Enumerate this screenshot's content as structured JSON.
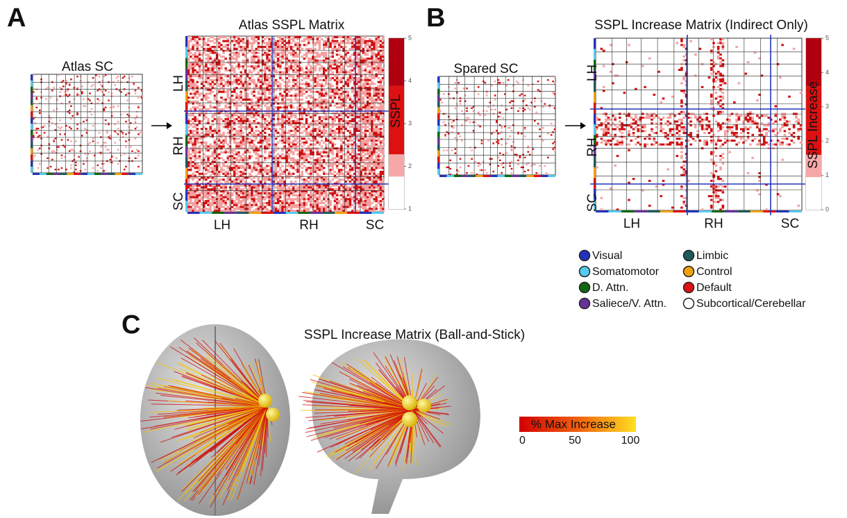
{
  "panels": {
    "A": {
      "label": "A",
      "small_title": "Atlas SC",
      "title": "Atlas SSPL Matrix",
      "row_labels": [
        "LH",
        "RH",
        "SC"
      ],
      "col_labels": [
        "LH",
        "RH",
        "SC"
      ],
      "colorbar": {
        "label": "SSPL",
        "ticks": [
          1,
          2,
          3,
          4,
          5
        ]
      }
    },
    "B": {
      "label": "B",
      "small_title": "Spared SC",
      "title": "SSPL Increase Matrix (Indirect Only)",
      "row_labels": [
        "LH",
        "RH",
        "SC"
      ],
      "col_labels": [
        "LH",
        "RH",
        "SC"
      ],
      "colorbar": {
        "label": "SSPL Increase",
        "ticks": [
          0,
          1,
          2,
          3,
          4,
          5
        ]
      }
    },
    "legend": [
      {
        "name": "Visual",
        "color": "#2233bb"
      },
      {
        "name": "Somatomotor",
        "color": "#55ccee"
      },
      {
        "name": "D. Attn.",
        "color": "#116611"
      },
      {
        "name": "Saliece/V. Attn.",
        "color": "#663399"
      },
      {
        "name": "Limbic",
        "color": "#1e5a5a"
      },
      {
        "name": "Control",
        "color": "#f0a010"
      },
      {
        "name": "Default",
        "color": "#dd1111"
      },
      {
        "name": "Subcortical/Cerebellar",
        "color": "#ffffff"
      }
    ],
    "C": {
      "label": "C",
      "title": "SSPL Increase Matrix (Ball-and-Stick)",
      "colorbar": {
        "label": "% Max Increase",
        "ticks": [
          0,
          50,
          100
        ]
      }
    }
  }
}
